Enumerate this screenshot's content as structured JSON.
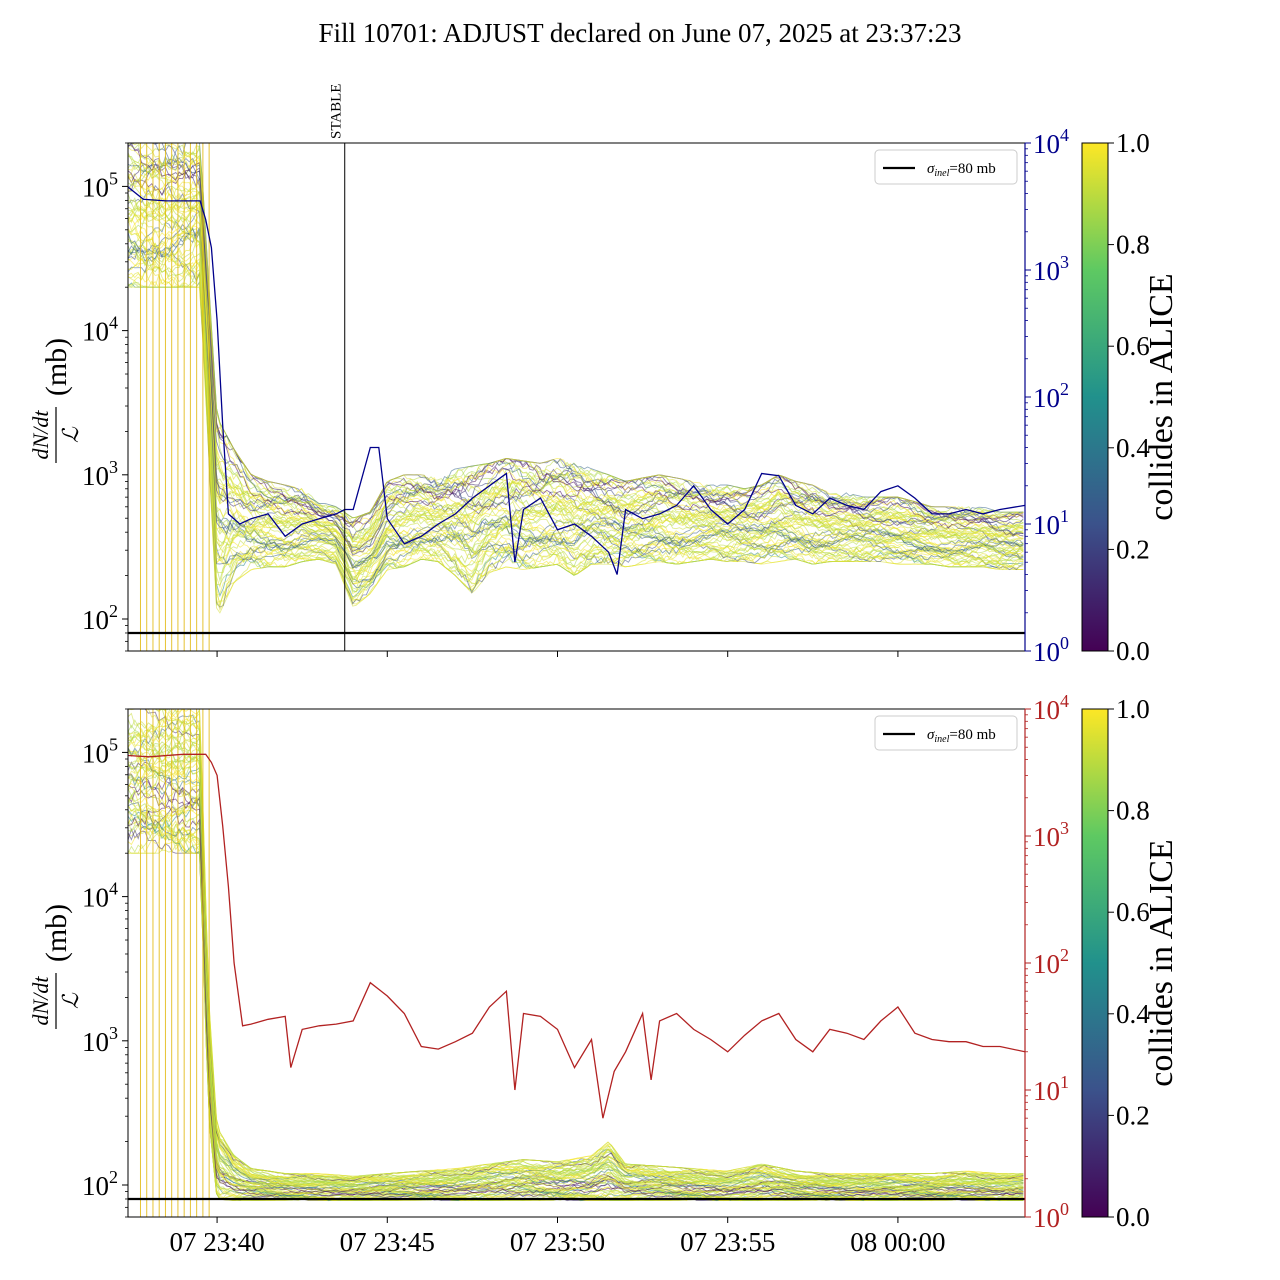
{
  "title": "Fill 10701: ADJUST declared on June 07, 2025 at 23:37:23",
  "colors": {
    "viridis": [
      "#440154",
      "#3b528b",
      "#21918c",
      "#5ec962",
      "#fde725"
    ],
    "yellow": "#fde725",
    "top_secondary": "#00008b",
    "bottom_secondary": "#b22222",
    "reference": "#000000"
  },
  "chart_data": [
    {
      "type": "line",
      "panel": "top",
      "ylabel": "dN/dt / ℒ (mb)",
      "ylabel_parts": {
        "numerator": "dN/dt",
        "denominator": "ℒ",
        "unit": "(mb)"
      },
      "y_scale": "log",
      "ylim": [
        60,
        200000
      ],
      "y_ticks": [
        {
          "base": "10",
          "exp": "2",
          "value": 100
        },
        {
          "base": "10",
          "exp": "3",
          "value": 1000
        },
        {
          "base": "10",
          "exp": "4",
          "value": 10000
        },
        {
          "base": "10",
          "exp": "5",
          "value": 100000
        }
      ],
      "y2_scale": "log",
      "y2lim": [
        1,
        10000
      ],
      "y2_ticks": [
        {
          "base": "10",
          "exp": "0",
          "value": 1
        },
        {
          "base": "10",
          "exp": "1",
          "value": 10
        },
        {
          "base": "10",
          "exp": "2",
          "value": 100
        },
        {
          "base": "10",
          "exp": "3",
          "value": 1000
        },
        {
          "base": "10",
          "exp": "4",
          "value": 10000
        }
      ],
      "xlim": [
        "2025-06-07 23:37:23",
        "2025-06-08 00:03:44"
      ],
      "vline": {
        "x": "2025-06-07 23:43:45",
        "label": "STABLE"
      },
      "legend": {
        "position": "top-right",
        "label_symbol": "σ",
        "label_sub": "inel",
        "label_rest": "=80 mb"
      },
      "reference_line": {
        "y": 80,
        "name": "σinel=80 mb"
      },
      "colorbar": {
        "label": "collides in ALICE",
        "range": [
          0.0,
          1.0
        ],
        "ticks": [
          "0.0",
          "0.2",
          "0.4",
          "0.6",
          "0.8",
          "1.0"
        ]
      },
      "bunch_band": {
        "x": [
          "23:37:23",
          "23:39:30",
          "23:40:00",
          "23:40:30",
          "23:41:00",
          "23:41:30",
          "23:42:00",
          "23:42:30",
          "23:43:00",
          "23:43:30",
          "23:44:00",
          "23:44:30",
          "23:45:00",
          "23:45:30",
          "23:46:00",
          "23:46:30",
          "23:47:00",
          "23:47:30",
          "23:48:00",
          "23:48:30",
          "23:49:00",
          "23:49:30",
          "23:50:00",
          "23:50:30",
          "23:51:00",
          "23:51:30",
          "23:52:00",
          "23:52:30",
          "23:53:00",
          "23:53:30",
          "23:54:00",
          "23:54:30",
          "23:55:00",
          "23:55:30",
          "23:56:00",
          "23:56:30",
          "23:57:00",
          "23:57:30",
          "23:58:00",
          "23:58:30",
          "23:59:00",
          "23:59:30",
          "00:00:00",
          "00:00:30",
          "00:01:00",
          "00:01:30",
          "00:02:00",
          "00:02:30",
          "00:03:00",
          "00:03:44"
        ],
        "low": [
          20000,
          20000,
          100,
          180,
          220,
          230,
          230,
          250,
          260,
          240,
          120,
          150,
          220,
          230,
          260,
          250,
          200,
          150,
          210,
          230,
          220,
          230,
          240,
          200,
          240,
          240,
          230,
          240,
          250,
          240,
          250,
          260,
          250,
          250,
          240,
          250,
          260,
          240,
          250,
          250,
          250,
          250,
          240,
          240,
          240,
          230,
          230,
          230,
          220,
          220
        ],
        "high": [
          200000,
          200000,
          2500,
          1500,
          1000,
          900,
          850,
          800,
          650,
          600,
          500,
          550,
          900,
          1000,
          1000,
          950,
          1100,
          1150,
          1200,
          1300,
          1250,
          1200,
          1300,
          1250,
          1100,
          1000,
          900,
          950,
          1000,
          950,
          900,
          850,
          850,
          800,
          850,
          1000,
          900,
          850,
          750,
          750,
          700,
          700,
          700,
          650,
          600,
          600,
          600,
          600,
          550,
          550
        ]
      },
      "secondary_line": {
        "x": [
          "23:37:23",
          "23:37:50",
          "23:38:30",
          "23:39:30",
          "23:39:40",
          "23:39:50",
          "23:40:00",
          "23:40:10",
          "23:40:20",
          "23:40:40",
          "23:41:00",
          "23:41:30",
          "23:42:00",
          "23:42:30",
          "23:43:00",
          "23:43:30",
          "23:43:45",
          "23:44:00",
          "23:44:30",
          "23:44:45",
          "23:45:00",
          "23:45:30",
          "23:46:00",
          "23:46:30",
          "23:47:00",
          "23:47:30",
          "23:48:00",
          "23:48:30",
          "23:48:45",
          "23:49:00",
          "23:49:30",
          "23:50:00",
          "23:50:30",
          "23:51:00",
          "23:51:30",
          "23:51:45",
          "23:52:00",
          "23:52:30",
          "23:53:00",
          "23:53:30",
          "23:54:00",
          "23:54:30",
          "23:55:00",
          "23:55:30",
          "23:56:00",
          "23:56:30",
          "23:57:00",
          "23:57:30",
          "23:58:00",
          "23:58:30",
          "23:59:00",
          "23:59:30",
          "00:00:00",
          "00:00:30",
          "00:01:00",
          "00:01:30",
          "00:02:00",
          "00:02:30",
          "00:03:00",
          "00:03:44"
        ],
        "values": [
          4500,
          3600,
          3500,
          3500,
          2500,
          1500,
          400,
          60,
          12,
          10,
          11,
          12,
          8,
          10,
          11,
          12,
          13,
          13,
          40,
          40,
          11,
          7,
          8,
          10,
          12,
          16,
          20,
          25,
          5,
          13,
          16,
          9,
          10,
          8,
          6,
          4,
          13,
          11,
          12,
          14,
          20,
          13,
          10,
          13,
          25,
          24,
          14,
          12,
          16,
          14,
          13,
          18,
          20,
          16,
          12,
          12,
          13,
          12,
          13,
          14
        ]
      }
    },
    {
      "type": "line",
      "panel": "bottom",
      "ylabel": "dN/dt / ℒ (mb)",
      "ylabel_parts": {
        "numerator": "dN/dt",
        "denominator": "ℒ",
        "unit": "(mb)"
      },
      "y_scale": "log",
      "ylim": [
        60,
        200000
      ],
      "y_ticks": [
        {
          "base": "10",
          "exp": "2",
          "value": 100
        },
        {
          "base": "10",
          "exp": "3",
          "value": 1000
        },
        {
          "base": "10",
          "exp": "4",
          "value": 10000
        },
        {
          "base": "10",
          "exp": "5",
          "value": 100000
        }
      ],
      "y2_scale": "log",
      "y2lim": [
        1,
        10000
      ],
      "y2_ticks": [
        {
          "base": "10",
          "exp": "0",
          "value": 1
        },
        {
          "base": "10",
          "exp": "1",
          "value": 10
        },
        {
          "base": "10",
          "exp": "2",
          "value": 100
        },
        {
          "base": "10",
          "exp": "3",
          "value": 1000
        },
        {
          "base": "10",
          "exp": "4",
          "value": 10000
        }
      ],
      "xlim": [
        "2025-06-07 23:37:23",
        "2025-06-08 00:03:44"
      ],
      "x_ticks": [
        "07 23:40",
        "07 23:45",
        "07 23:50",
        "07 23:55",
        "08 00:00"
      ],
      "x_tick_times": [
        "23:40:00",
        "23:45:00",
        "23:50:00",
        "23:55:00",
        "00:00:00"
      ],
      "legend": {
        "position": "top-right",
        "label_symbol": "σ",
        "label_sub": "inel",
        "label_rest": "=80 mb"
      },
      "reference_line": {
        "y": 80,
        "name": "σinel=80 mb"
      },
      "colorbar": {
        "label": "collides in ALICE",
        "range": [
          0.0,
          1.0
        ],
        "ticks": [
          "0.0",
          "0.2",
          "0.4",
          "0.6",
          "0.8",
          "1.0"
        ]
      },
      "bunch_band": {
        "x": [
          "23:37:23",
          "23:39:30",
          "23:39:45",
          "23:40:00",
          "23:40:30",
          "23:41:00",
          "23:42:00",
          "23:43:00",
          "23:44:00",
          "23:45:00",
          "23:46:00",
          "23:47:00",
          "23:48:00",
          "23:49:00",
          "23:50:00",
          "23:51:00",
          "23:51:30",
          "23:52:00",
          "23:53:00",
          "23:54:00",
          "23:55:00",
          "23:56:00",
          "23:57:00",
          "23:58:00",
          "23:59:00",
          "00:00:00",
          "00:01:00",
          "00:02:00",
          "00:03:00",
          "00:03:44"
        ],
        "low": [
          20000,
          20000,
          300,
          80,
          78,
          78,
          78,
          78,
          78,
          78,
          78,
          78,
          78,
          78,
          78,
          78,
          78,
          78,
          78,
          78,
          78,
          78,
          78,
          78,
          78,
          78,
          78,
          78,
          78,
          78
        ],
        "high": [
          200000,
          200000,
          2000,
          250,
          160,
          130,
          120,
          120,
          115,
          120,
          125,
          130,
          140,
          150,
          145,
          160,
          200,
          140,
          135,
          130,
          125,
          140,
          125,
          120,
          120,
          120,
          120,
          125,
          120,
          120
        ]
      },
      "secondary_line": {
        "x": [
          "23:37:23",
          "23:38:00",
          "23:39:00",
          "23:39:40",
          "23:39:50",
          "23:40:00",
          "23:40:10",
          "23:40:20",
          "23:40:30",
          "23:40:45",
          "23:41:00",
          "23:41:30",
          "23:42:00",
          "23:42:10",
          "23:42:30",
          "23:43:00",
          "23:43:30",
          "23:44:00",
          "23:44:30",
          "23:45:00",
          "23:45:30",
          "23:46:00",
          "23:46:30",
          "23:47:00",
          "23:47:30",
          "23:48:00",
          "23:48:30",
          "23:48:45",
          "23:49:00",
          "23:49:30",
          "23:50:00",
          "23:50:30",
          "23:51:00",
          "23:51:20",
          "23:51:40",
          "23:52:00",
          "23:52:30",
          "23:52:45",
          "23:53:00",
          "23:53:30",
          "23:54:00",
          "23:54:30",
          "23:55:00",
          "23:55:30",
          "23:56:00",
          "23:56:30",
          "23:57:00",
          "23:57:30",
          "23:58:00",
          "23:58:30",
          "23:59:00",
          "23:59:30",
          "00:00:00",
          "00:00:30",
          "00:01:00",
          "00:01:30",
          "00:02:00",
          "00:02:30",
          "00:03:00",
          "00:03:44"
        ],
        "values": [
          4300,
          4200,
          4400,
          4400,
          3800,
          3000,
          1200,
          400,
          100,
          32,
          33,
          36,
          38,
          15,
          30,
          32,
          33,
          35,
          70,
          55,
          40,
          22,
          21,
          24,
          28,
          45,
          60,
          10,
          40,
          38,
          30,
          15,
          25,
          6,
          14,
          20,
          40,
          12,
          35,
          40,
          30,
          25,
          20,
          27,
          35,
          40,
          25,
          20,
          30,
          28,
          25,
          35,
          45,
          28,
          25,
          24,
          24,
          22,
          22,
          20
        ]
      }
    }
  ]
}
